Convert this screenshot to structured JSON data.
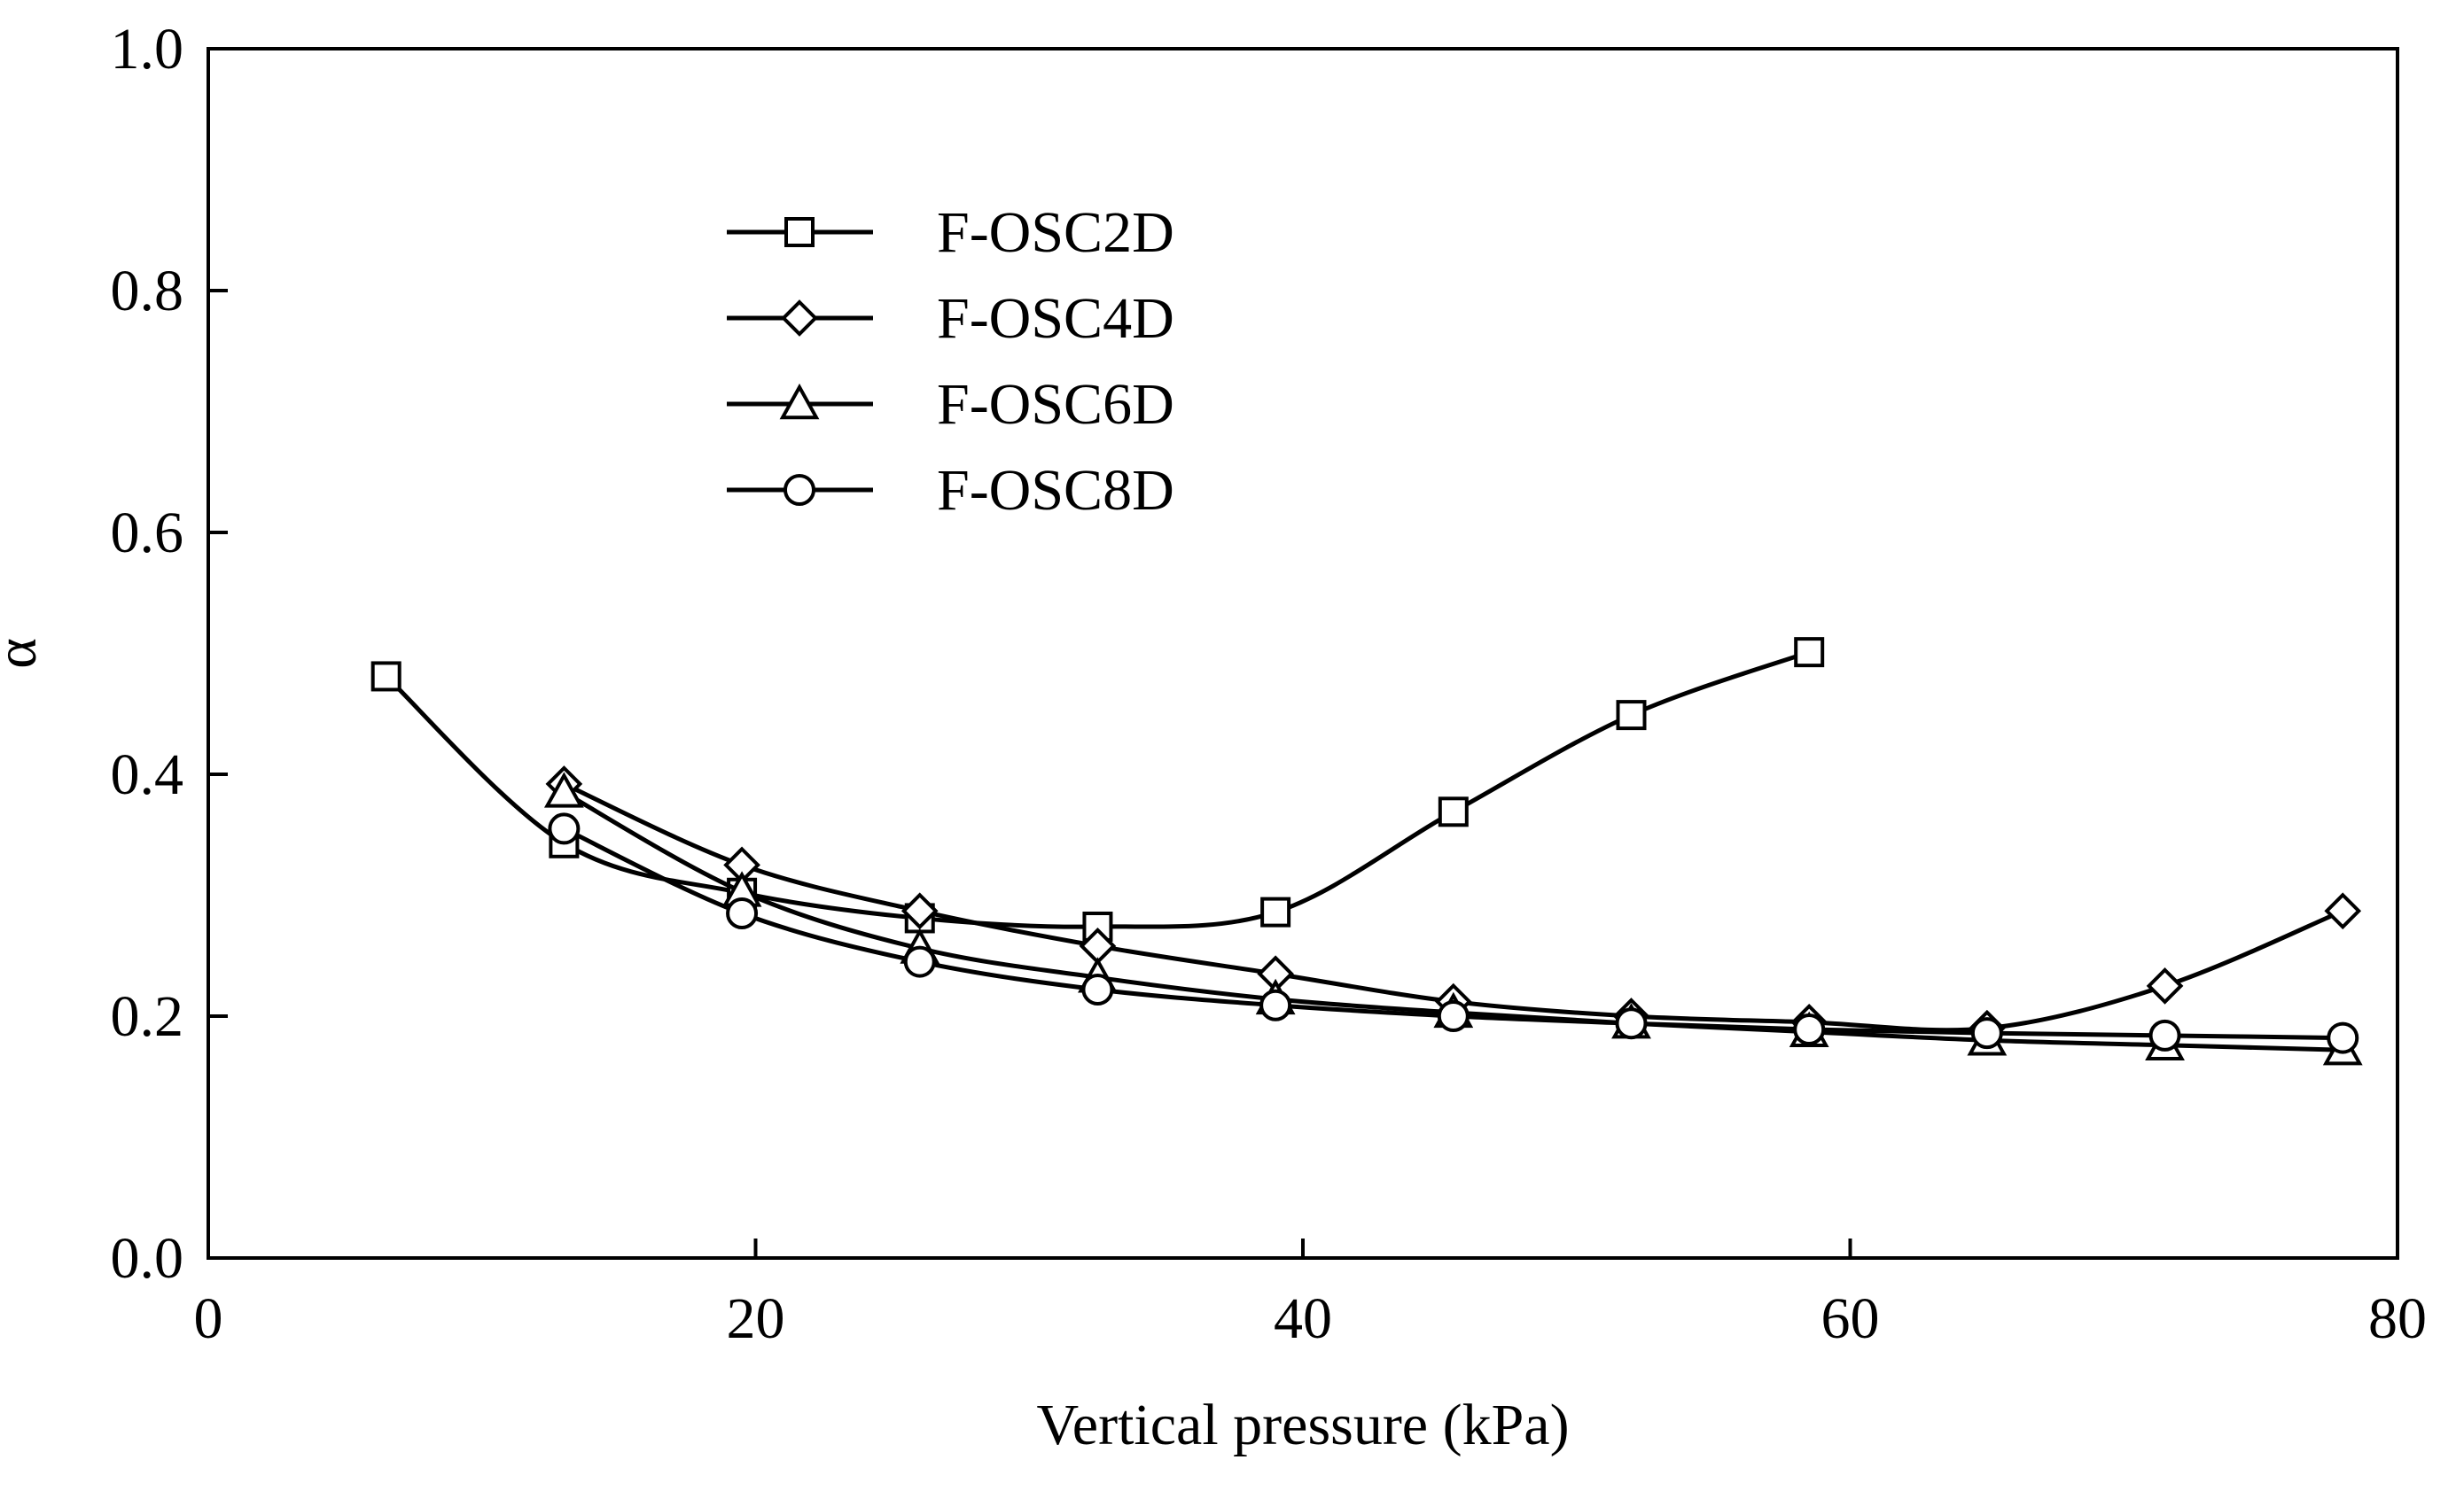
{
  "chart_data": {
    "type": "line",
    "title": "",
    "xlabel": "Vertical pressure (kPa)",
    "ylabel": "α",
    "xlim": [
      0,
      80
    ],
    "ylim": [
      0.0,
      1.0
    ],
    "x_ticks": [
      "0",
      "20",
      "40",
      "60",
      "80"
    ],
    "y_ticks": [
      "0.0",
      "0.2",
      "0.4",
      "0.6",
      "0.8",
      "1.0"
    ],
    "grid": false,
    "legend_position": "upper-left-center",
    "series": [
      {
        "name": "F-OSC2D",
        "marker": "square",
        "x": [
          6.5,
          13,
          19.5,
          26,
          32.5,
          39,
          45.5,
          52,
          58.5
        ],
        "y": [
          0.481,
          0.343,
          0.302,
          0.281,
          0.274,
          0.286,
          0.369,
          0.449,
          0.501
        ]
      },
      {
        "name": "F-OSC4D",
        "marker": "diamond",
        "x": [
          13,
          19.5,
          26,
          32.5,
          39,
          45.5,
          52,
          58.5,
          65,
          71.5,
          78
        ],
        "y": [
          0.392,
          0.325,
          0.287,
          0.258,
          0.235,
          0.212,
          0.2,
          0.195,
          0.19,
          0.225,
          0.287
        ]
      },
      {
        "name": "F-OSC6D",
        "marker": "triangle",
        "x": [
          13,
          19.5,
          26,
          32.5,
          39,
          45.5,
          52,
          58.5,
          65,
          71.5,
          78
        ],
        "y": [
          0.385,
          0.303,
          0.256,
          0.232,
          0.214,
          0.203,
          0.194,
          0.187,
          0.18,
          0.176,
          0.172
        ]
      },
      {
        "name": "F-OSC8D",
        "marker": "circle",
        "x": [
          13,
          19.5,
          26,
          32.5,
          39,
          45.5,
          52,
          58.5,
          65,
          71.5,
          78
        ],
        "y": [
          0.355,
          0.285,
          0.245,
          0.222,
          0.209,
          0.2,
          0.194,
          0.189,
          0.186,
          0.184,
          0.182
        ]
      }
    ]
  }
}
